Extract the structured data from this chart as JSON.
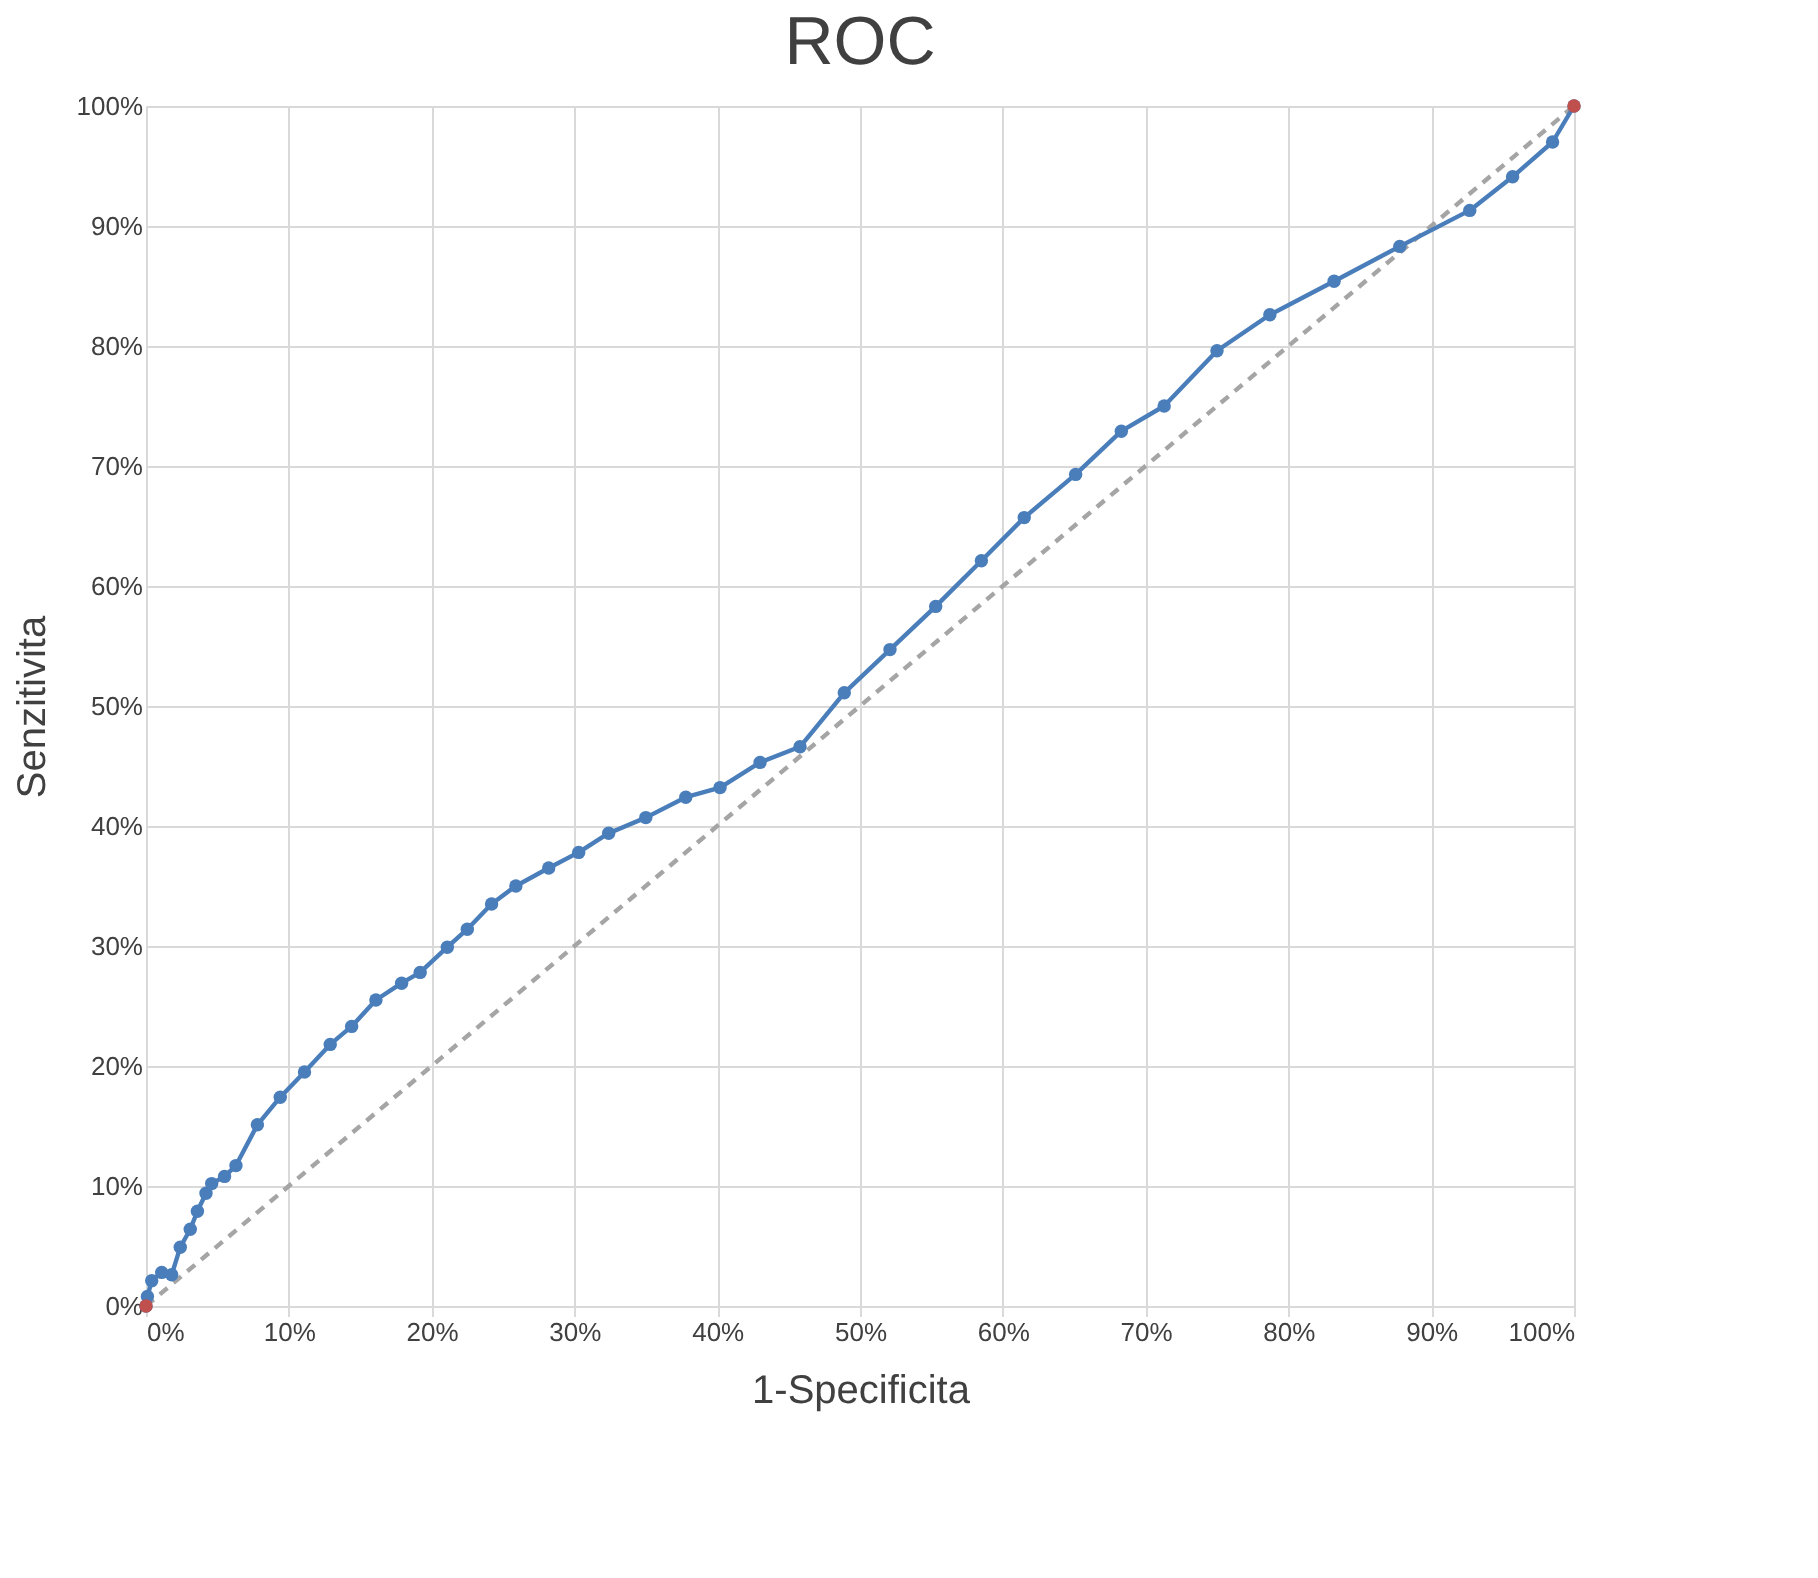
{
  "chart_data": {
    "type": "line",
    "title": "ROC",
    "xlabel": "1-Specificita",
    "ylabel": "Senzitivita",
    "xlim": [
      0,
      100
    ],
    "ylim": [
      0,
      100
    ],
    "xticks": [
      {
        "value": 0,
        "label": "0%"
      },
      {
        "value": 10,
        "label": "10%"
      },
      {
        "value": 20,
        "label": "20%"
      },
      {
        "value": 30,
        "label": "30%"
      },
      {
        "value": 40,
        "label": "40%"
      },
      {
        "value": 50,
        "label": "50%"
      },
      {
        "value": 60,
        "label": "60%"
      },
      {
        "value": 70,
        "label": "70%"
      },
      {
        "value": 80,
        "label": "80%"
      },
      {
        "value": 90,
        "label": "90%"
      },
      {
        "value": 100,
        "label": "100%"
      }
    ],
    "yticks": [
      {
        "value": 0,
        "label": "0%"
      },
      {
        "value": 10,
        "label": "10%"
      },
      {
        "value": 20,
        "label": "20%"
      },
      {
        "value": 30,
        "label": "30%"
      },
      {
        "value": 40,
        "label": "40%"
      },
      {
        "value": 50,
        "label": "50%"
      },
      {
        "value": 60,
        "label": "60%"
      },
      {
        "value": 70,
        "label": "70%"
      },
      {
        "value": 80,
        "label": "80%"
      },
      {
        "value": 90,
        "label": "90%"
      },
      {
        "value": 100,
        "label": "100%"
      }
    ],
    "grid": true,
    "legend": false,
    "series": [
      {
        "type": "line",
        "color": "#a5a5a5",
        "line_style": "dashed",
        "marker": "none",
        "x": [
          0,
          100
        ],
        "values": [
          0,
          100
        ]
      },
      {
        "color": "#4a7ebb",
        "line_style": "solid",
        "marker": "circle",
        "x": [
          0,
          0.1,
          0.4,
          1.1,
          1.8,
          2.4,
          3.1,
          3.6,
          4.2,
          4.6,
          5.5,
          6.3,
          7.8,
          9.4,
          11.1,
          12.9,
          14.4,
          16.1,
          17.9,
          19.2,
          21.1,
          22.5,
          24.2,
          25.9,
          28.2,
          30.3,
          32.4,
          35.0,
          37.8,
          40.2,
          43.0,
          45.8,
          48.9,
          52.1,
          55.3,
          58.5,
          61.5,
          65.1,
          68.3,
          71.3,
          75.0,
          78.7,
          83.2,
          87.8,
          92.7,
          95.7,
          98.5,
          100
        ],
        "values": [
          0,
          0.8,
          2.1,
          2.8,
          2.6,
          4.9,
          6.4,
          7.9,
          9.4,
          10.2,
          10.8,
          11.7,
          15.1,
          17.4,
          19.5,
          21.8,
          23.3,
          25.5,
          26.9,
          27.8,
          29.9,
          31.4,
          33.5,
          35.0,
          36.5,
          37.8,
          39.4,
          40.7,
          42.4,
          43.2,
          45.3,
          46.6,
          51.1,
          54.7,
          58.3,
          62.1,
          65.7,
          69.3,
          72.9,
          75.0,
          79.6,
          82.6,
          85.4,
          88.3,
          91.3,
          94.1,
          97.0,
          100
        ]
      },
      {
        "type": "scatter",
        "color": "#c0504d",
        "marker": "circle",
        "x": [
          0,
          100
        ],
        "values": [
          0,
          100
        ]
      }
    ]
  }
}
